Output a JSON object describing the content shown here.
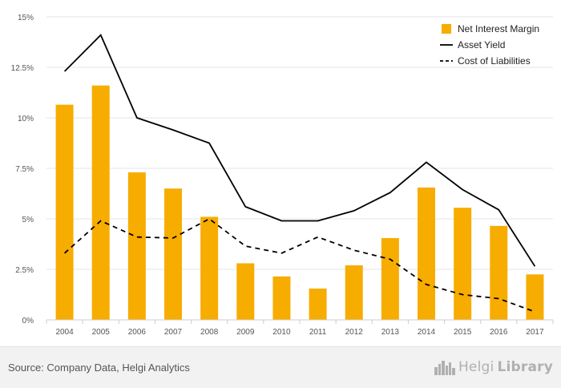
{
  "chart_data": {
    "type": "bar",
    "categories": [
      "2004",
      "2005",
      "2006",
      "2007",
      "2008",
      "2009",
      "2010",
      "2011",
      "2012",
      "2013",
      "2014",
      "2015",
      "2016",
      "2017"
    ],
    "ylim": [
      0,
      15
    ],
    "yticks": [
      0,
      2.5,
      5,
      7.5,
      10,
      12.5,
      15
    ],
    "ytick_labels": [
      "0%",
      "2.5%",
      "5%",
      "7.5%",
      "10%",
      "12.5%",
      "15%"
    ],
    "grid": true,
    "legend_position": "top-right",
    "series": [
      {
        "name": "Net Interest Margin",
        "type": "bar",
        "color": "#f7ac00",
        "values": [
          10.65,
          11.6,
          7.3,
          6.5,
          5.1,
          2.8,
          2.15,
          1.55,
          2.7,
          4.05,
          6.55,
          5.55,
          4.65,
          2.25
        ]
      },
      {
        "name": "Asset Yield",
        "type": "line",
        "style": "solid",
        "color": "#000000",
        "values": [
          12.3,
          14.1,
          10.0,
          9.4,
          8.75,
          5.6,
          4.9,
          4.9,
          5.4,
          6.3,
          7.8,
          6.45,
          5.45,
          2.65
        ]
      },
      {
        "name": "Cost of Liabilities",
        "type": "line",
        "style": "dashed",
        "color": "#000000",
        "values": [
          3.3,
          4.9,
          4.1,
          4.05,
          5.0,
          3.65,
          3.3,
          4.1,
          3.45,
          3.0,
          1.75,
          1.25,
          1.05,
          0.4
        ]
      }
    ]
  },
  "footer": {
    "source": "Source: Company Data, Helgi Analytics",
    "logo_part1": "Helgi",
    "logo_part2": "Library"
  },
  "logo_icon": "city-skyline-icon"
}
